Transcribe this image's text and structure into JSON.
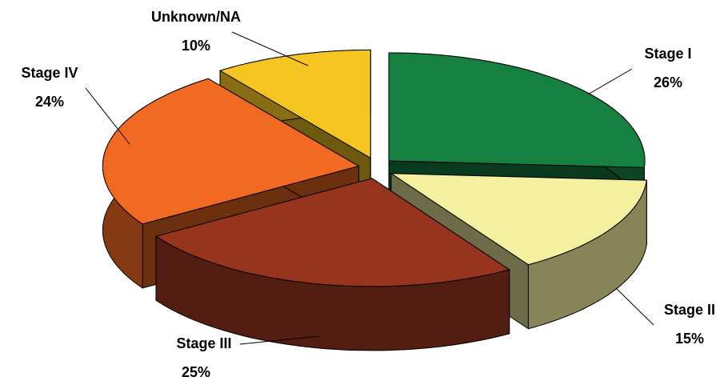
{
  "chart_data": {
    "type": "pie",
    "categories": [
      "Stage I",
      "Stage II",
      "Stage III",
      "Stage IV",
      "Unknown/NA"
    ],
    "values": [
      26,
      15,
      25,
      24,
      10
    ],
    "value_labels": [
      "26%",
      "15%",
      "25%",
      "24%",
      "10%"
    ],
    "colors": [
      "#158040",
      "#f5f0a0",
      "#96341e",
      "#f26a22",
      "#f5c622"
    ]
  }
}
